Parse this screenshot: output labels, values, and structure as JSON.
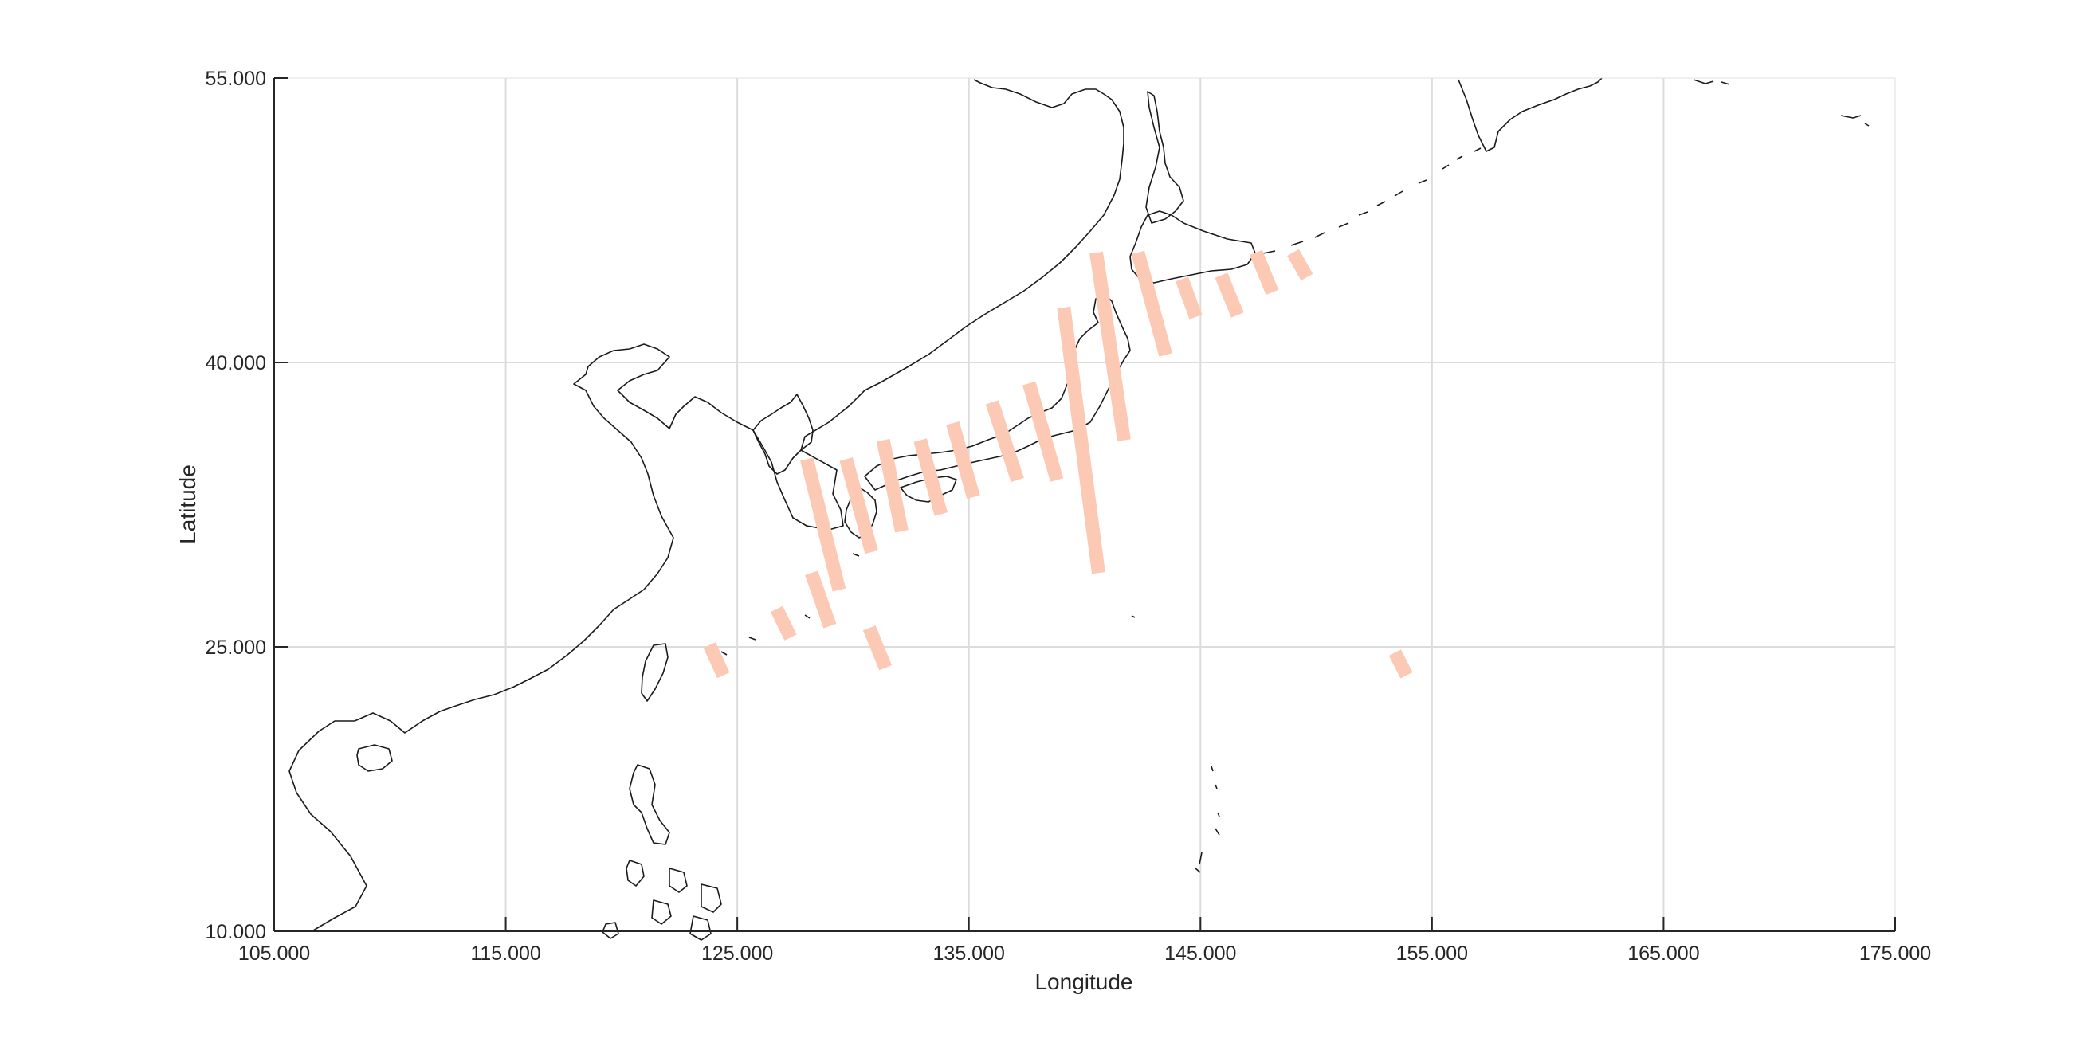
{
  "map": {
    "xlabel": "Longitude",
    "ylabel": "Latitude",
    "xlim": [
      105,
      175
    ],
    "ylim": [
      10,
      55
    ],
    "grid": true,
    "xticks": [
      105,
      115,
      125,
      135,
      145,
      155,
      165,
      175
    ],
    "yticks": [
      10,
      25,
      40,
      55
    ],
    "xtick_labels": [
      "105.000",
      "115.000",
      "125.000",
      "135.000",
      "145.000",
      "155.000",
      "165.000",
      "175.000"
    ],
    "ytick_labels": [
      "10.000",
      "25.000",
      "40.000",
      "55.000"
    ],
    "swath_color": "#fcc9b5",
    "coastline_color": "#1a1a1a"
  },
  "chart_data": {
    "type": "scatter",
    "xlabel": "Longitude",
    "ylabel": "Latitude",
    "xlim": [
      105,
      175
    ],
    "ylim": [
      10,
      55
    ],
    "grid": "on",
    "series": [
      {
        "segments": [
          {
            "start": [
              140.5,
              45.8
            ],
            "end": [
              141.7,
              35.9
            ]
          },
          {
            "start": [
              142.3,
              45.8
            ],
            "end": [
              143.5,
              40.4
            ]
          },
          {
            "start": [
              144.2,
              44.4
            ],
            "end": [
              144.8,
              42.4
            ]
          },
          {
            "start": [
              145.9,
              44.6
            ],
            "end": [
              146.6,
              42.5
            ]
          },
          {
            "start": [
              147.4,
              45.8
            ],
            "end": [
              148.1,
              43.7
            ]
          },
          {
            "start": [
              149.0,
              45.8
            ],
            "end": [
              149.6,
              44.5
            ]
          },
          {
            "start": [
              139.1,
              42.9
            ],
            "end": [
              140.6,
              28.9
            ]
          },
          {
            "start": [
              137.6,
              38.9
            ],
            "end": [
              138.8,
              33.8
            ]
          },
          {
            "start": [
              136.0,
              37.9
            ],
            "end": [
              137.1,
              33.8
            ]
          },
          {
            "start": [
              134.3,
              36.8
            ],
            "end": [
              135.2,
              32.9
            ]
          },
          {
            "start": [
              132.9,
              35.9
            ],
            "end": [
              133.8,
              32.0
            ]
          },
          {
            "start": [
              131.3,
              35.9
            ],
            "end": [
              132.1,
              31.1
            ]
          },
          {
            "start": [
              129.7,
              34.9
            ],
            "end": [
              130.8,
              30.0
            ]
          },
          {
            "start": [
              128.0,
              34.9
            ],
            "end": [
              129.4,
              28.0
            ]
          },
          {
            "start": [
              128.2,
              28.9
            ],
            "end": [
              129.0,
              26.1
            ]
          },
          {
            "start": [
              126.7,
              27.0
            ],
            "end": [
              127.3,
              25.5
            ]
          },
          {
            "start": [
              130.7,
              26.0
            ],
            "end": [
              131.4,
              23.9
            ]
          },
          {
            "start": [
              123.8,
              25.1
            ],
            "end": [
              124.4,
              23.5
            ]
          },
          {
            "start": [
              153.4,
              24.7
            ],
            "end": [
              153.9,
              23.5
            ]
          }
        ]
      }
    ]
  }
}
